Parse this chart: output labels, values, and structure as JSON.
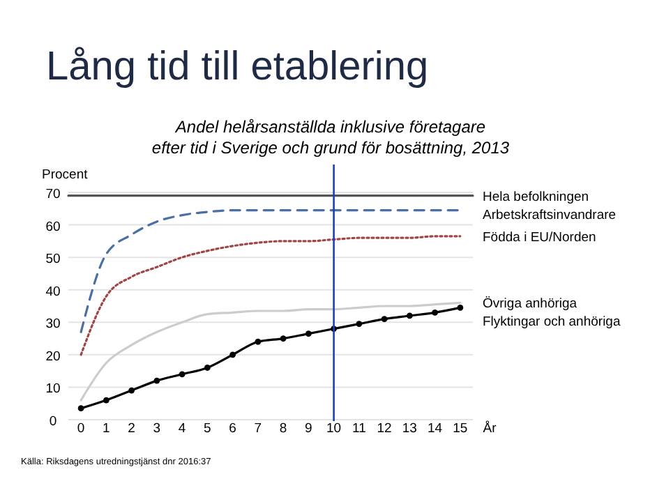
{
  "chart_data": {
    "type": "line",
    "title": "Lång tid till etablering",
    "subtitle": "Andel helårsanställda inklusive företagare\nefter tid i Sverige och grund för bosättning, 2013",
    "ylabel": "Procent",
    "xlabel": "År",
    "x": [
      0,
      1,
      2,
      3,
      4,
      5,
      6,
      7,
      8,
      9,
      10,
      11,
      12,
      13,
      14,
      15
    ],
    "xlim": [
      -0.5,
      15.5
    ],
    "xticks": [
      0,
      1,
      2,
      3,
      4,
      5,
      6,
      7,
      8,
      9,
      10,
      11,
      12,
      13,
      14,
      15
    ],
    "ylim": [
      0,
      70
    ],
    "yticks": [
      0,
      10,
      20,
      30,
      40,
      50,
      60,
      70
    ],
    "grid": "y",
    "series": [
      {
        "name": "Hela befolkningen",
        "color": "#555555",
        "x": [
          -0.5,
          15.5
        ],
        "values": [
          69,
          69
        ],
        "line_style": "solid",
        "marker": "none"
      },
      {
        "name": "Arbetskraftsinvandrare",
        "color": "#4a6fa5",
        "values": [
          27,
          51,
          57,
          61,
          63,
          64,
          64.5,
          64.5,
          64.5,
          64.5,
          64.5,
          64.5,
          64.5,
          64.5,
          64.5,
          64.5
        ],
        "line_style": "dashed",
        "marker": "none"
      },
      {
        "name": "Födda i EU/Norden",
        "color": "#a04545",
        "values": [
          20,
          38,
          44,
          47,
          50,
          52,
          53.5,
          54.5,
          55,
          55,
          55.5,
          56,
          56,
          56,
          56.5,
          56.5
        ],
        "line_style": "dotted",
        "marker": "none"
      },
      {
        "name": "Övriga anhöriga",
        "color": "#cccccc",
        "values": [
          6,
          17.5,
          23,
          27,
          30,
          32.5,
          33,
          33.5,
          33.5,
          34,
          34,
          34.5,
          35,
          35,
          35.5,
          36
        ],
        "line_style": "solid",
        "marker": "none"
      },
      {
        "name": "Flyktingar och anhöriga",
        "color": "#000000",
        "values": [
          3.5,
          6,
          9,
          12,
          14,
          16,
          20,
          24,
          25,
          26.5,
          28,
          29.5,
          31,
          32,
          33,
          34.5
        ],
        "line_style": "solid",
        "marker": "circle"
      }
    ],
    "ref_lines": [
      {
        "axis": "x",
        "value": 10,
        "color": "#1a3fbf"
      }
    ],
    "annotations": [
      "Källa: Riksdagens utredningstjänst dnr 2016:37"
    ]
  }
}
